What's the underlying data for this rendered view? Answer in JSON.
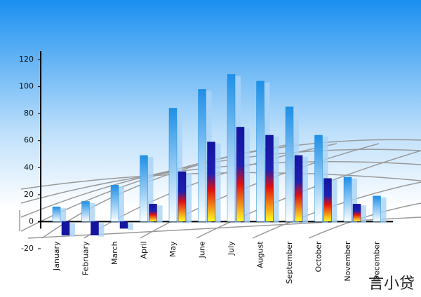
{
  "chart_data": {
    "type": "bar",
    "categories": [
      "January",
      "February",
      "March",
      "April",
      "May",
      "June",
      "July",
      "August",
      "September",
      "October",
      "November",
      "December"
    ],
    "series": [
      {
        "color": "#1e8fe6",
        "values": [
          11,
          15,
          27,
          49,
          84,
          98,
          109,
          104,
          85,
          64,
          33,
          19
        ]
      },
      {
        "color": "#1414a0",
        "values": [
          -10,
          -10,
          -5,
          13,
          37,
          59,
          70,
          64,
          49,
          32,
          13,
          null
        ]
      }
    ],
    "ylim": [
      -20,
      120
    ],
    "yticks": [
      -20,
      0,
      20,
      40,
      60,
      80,
      100,
      120
    ],
    "watermark": "言小贷"
  }
}
